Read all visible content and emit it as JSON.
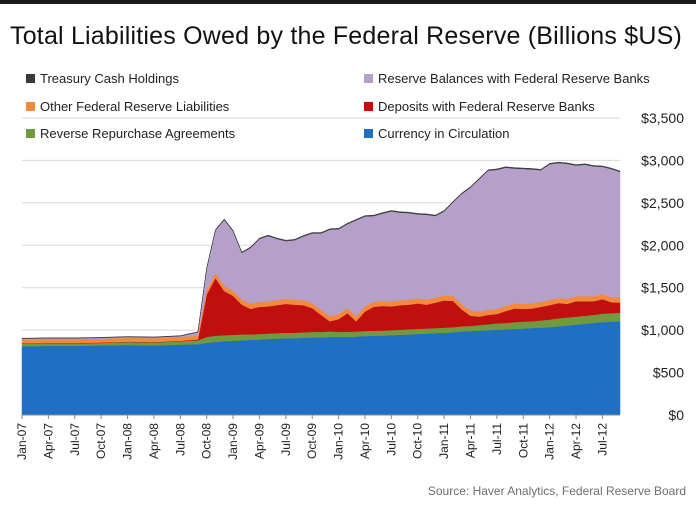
{
  "title": "Total Liabilities Owed by the Federal Reserve (Billions $US)",
  "source": "Source: Haver Analytics, Federal Reserve Board",
  "chart_data": {
    "type": "area",
    "stacked": true,
    "title": "Total Liabilities Owed by the Federal Reserve (Billions $US)",
    "xlabel": "",
    "ylabel": "",
    "ylim": [
      0,
      3500
    ],
    "y_ticks": [
      "$0",
      "$500",
      "$1,000",
      "$1,500",
      "$2,000",
      "$2,500",
      "$3,000",
      "$3,500"
    ],
    "x_ticks": [
      "Jan-07",
      "Apr-07",
      "Jul-07",
      "Oct-07",
      "Jan-08",
      "Apr-08",
      "Jul-08",
      "Oct-08",
      "Jan-09",
      "Apr-09",
      "Jul-09",
      "Oct-09",
      "Jan-10",
      "Apr-10",
      "Jul-10",
      "Oct-10",
      "Jan-11",
      "Apr-11",
      "Jul-11",
      "Oct-11",
      "Jan-12",
      "Apr-12",
      "Jul-12"
    ],
    "grid": "horizontal",
    "legend_position": "top",
    "x": [
      "2007-01",
      "2007-04",
      "2007-07",
      "2007-10",
      "2008-01",
      "2008-04",
      "2008-07",
      "2008-09",
      "2008-10",
      "2008-11",
      "2008-12",
      "2009-01",
      "2009-02",
      "2009-03",
      "2009-04",
      "2009-05",
      "2009-06",
      "2009-07",
      "2009-08",
      "2009-09",
      "2009-10",
      "2009-11",
      "2009-12",
      "2010-01",
      "2010-02",
      "2010-03",
      "2010-04",
      "2010-05",
      "2010-06",
      "2010-07",
      "2010-08",
      "2010-09",
      "2010-10",
      "2010-11",
      "2010-12",
      "2011-01",
      "2011-02",
      "2011-03",
      "2011-04",
      "2011-05",
      "2011-06",
      "2011-07",
      "2011-08",
      "2011-09",
      "2011-10",
      "2011-11",
      "2011-12",
      "2012-01",
      "2012-02",
      "2012-03",
      "2012-04",
      "2012-05",
      "2012-06",
      "2012-07",
      "2012-08",
      "2012-09"
    ],
    "series": [
      {
        "name": "Currency in Circulation",
        "color": "#1f6fc4",
        "values": [
          810,
          815,
          815,
          820,
          825,
          820,
          830,
          835,
          850,
          860,
          870,
          875,
          880,
          885,
          890,
          895,
          900,
          905,
          905,
          910,
          915,
          915,
          920,
          920,
          920,
          925,
          930,
          935,
          935,
          940,
          945,
          950,
          955,
          960,
          965,
          970,
          975,
          985,
          990,
          995,
          1000,
          1005,
          1010,
          1015,
          1020,
          1025,
          1030,
          1035,
          1045,
          1055,
          1065,
          1075,
          1085,
          1095,
          1100,
          1105
        ]
      },
      {
        "name": "Reverse Repurchase Agreements",
        "color": "#6f9a40",
        "values": [
          30,
          30,
          30,
          30,
          35,
          35,
          40,
          45,
          70,
          75,
          70,
          70,
          70,
          65,
          65,
          65,
          65,
          65,
          65,
          65,
          65,
          65,
          65,
          60,
          60,
          60,
          60,
          60,
          60,
          60,
          60,
          60,
          60,
          60,
          60,
          60,
          60,
          60,
          60,
          65,
          70,
          75,
          75,
          80,
          80,
          80,
          85,
          90,
          95,
          95,
          95,
          95,
          95,
          100,
          100,
          100
        ]
      },
      {
        "name": "Deposits with Federal Reserve Banks",
        "color": "#c10f0f",
        "values": [
          5,
          5,
          5,
          5,
          5,
          5,
          5,
          10,
          500,
          680,
          520,
          460,
          350,
          300,
          320,
          320,
          330,
          340,
          330,
          320,
          280,
          200,
          120,
          150,
          220,
          120,
          230,
          280,
          290,
          280,
          290,
          290,
          300,
          280,
          300,
          320,
          310,
          200,
          120,
          100,
          110,
          110,
          140,
          160,
          150,
          150,
          160,
          170,
          180,
          160,
          180,
          170,
          160,
          170,
          130,
          120
        ]
      },
      {
        "name": "Other Federal Reserve Liabilities",
        "color": "#f28a3c",
        "values": [
          45,
          45,
          45,
          45,
          45,
          45,
          45,
          45,
          55,
          60,
          60,
          60,
          60,
          60,
          60,
          60,
          60,
          60,
          60,
          60,
          60,
          60,
          60,
          60,
          60,
          60,
          60,
          60,
          60,
          60,
          60,
          60,
          60,
          60,
          60,
          60,
          60,
          60,
          60,
          60,
          60,
          60,
          60,
          60,
          60,
          60,
          60,
          60,
          60,
          60,
          60,
          60,
          60,
          60,
          60,
          60
        ]
      },
      {
        "name": "Reserve Balances with Federal Reserve Banks",
        "color": "#b5a0c9",
        "values": [
          10,
          10,
          10,
          10,
          10,
          10,
          10,
          40,
          250,
          500,
          780,
          700,
          550,
          660,
          740,
          770,
          720,
          680,
          700,
          750,
          820,
          900,
          1020,
          1000,
          990,
          1130,
          1060,
          1010,
          1030,
          1060,
          1030,
          1020,
          990,
          1000,
          960,
          990,
          1100,
          1300,
          1450,
          1560,
          1640,
          1640,
          1630,
          1590,
          1590,
          1580,
          1550,
          1600,
          1590,
          1590,
          1540,
          1550,
          1530,
          1500,
          1510,
          1480
        ]
      },
      {
        "name": "Treasury Cash Holdings",
        "color": "#3a3a3a",
        "values": [
          5,
          5,
          5,
          5,
          5,
          5,
          5,
          5,
          10,
          10,
          10,
          10,
          10,
          10,
          10,
          10,
          10,
          10,
          10,
          10,
          10,
          10,
          10,
          10,
          10,
          10,
          10,
          10,
          10,
          10,
          10,
          10,
          10,
          10,
          10,
          10,
          10,
          10,
          10,
          10,
          10,
          10,
          10,
          10,
          10,
          10,
          10,
          10,
          10,
          10,
          10,
          10,
          10,
          10,
          10,
          10
        ]
      }
    ],
    "legend_order": [
      "Treasury Cash Holdings",
      "Reserve Balances with Federal Reserve Banks",
      "Other Federal Reserve Liabilities",
      "Deposits with Federal Reserve Banks",
      "Reverse Repurchase Agreements",
      "Currency in Circulation"
    ]
  }
}
